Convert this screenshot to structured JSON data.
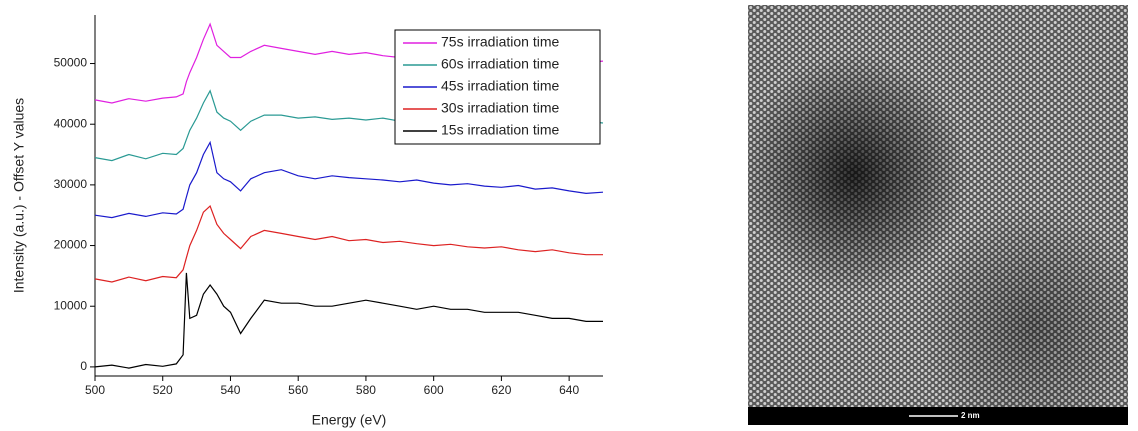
{
  "chart_data": {
    "type": "line",
    "x_label": "Energy (eV)",
    "y_label": "Intensity (a.u.) - Offset Y values",
    "xlim": [
      500,
      650
    ],
    "ylim": [
      -1500,
      58000
    ],
    "xticks": [
      500,
      520,
      540,
      560,
      580,
      600,
      620,
      640
    ],
    "yticks": [
      0,
      10000,
      20000,
      30000,
      40000,
      50000
    ],
    "legend": "upper right",
    "x": [
      500,
      505,
      510,
      515,
      520,
      524,
      526,
      527,
      528,
      530,
      532,
      534,
      536,
      538,
      540,
      543,
      546,
      550,
      555,
      560,
      565,
      570,
      575,
      580,
      585,
      590,
      595,
      600,
      605,
      610,
      615,
      620,
      625,
      630,
      635,
      640,
      645,
      650
    ],
    "series": [
      {
        "name": "75s irradiation time",
        "color": "#e020e0",
        "values": [
          44000,
          43500,
          44200,
          43800,
          44300,
          44500,
          45000,
          47000,
          48500,
          51000,
          54000,
          56500,
          53000,
          52000,
          51000,
          51000,
          52000,
          53000,
          52500,
          52000,
          51500,
          52000,
          51500,
          51800,
          51300,
          51000,
          51200,
          51000,
          50800,
          51000,
          50700,
          50500,
          50800,
          50500,
          50300,
          50500,
          50200,
          50400
        ]
      },
      {
        "name": "60s irradiation time",
        "color": "#2a9a94",
        "values": [
          34500,
          34000,
          35000,
          34300,
          35200,
          35000,
          36000,
          37500,
          39000,
          41000,
          43500,
          45500,
          42000,
          41000,
          40500,
          39000,
          40500,
          41500,
          41500,
          41000,
          41200,
          40800,
          41000,
          40700,
          41000,
          40500,
          40800,
          40500,
          40600,
          40300,
          40500,
          40200,
          40400,
          40000,
          40300,
          40100,
          40500,
          40200
        ]
      },
      {
        "name": "45s irradiation time",
        "color": "#1a1acc",
        "values": [
          25000,
          24600,
          25300,
          24800,
          25400,
          25200,
          26000,
          28000,
          30000,
          32000,
          35000,
          37000,
          32000,
          31000,
          30500,
          29000,
          31000,
          32000,
          32500,
          31500,
          31000,
          31500,
          31200,
          31000,
          30800,
          30500,
          30800,
          30300,
          30000,
          30200,
          29800,
          29600,
          29900,
          29300,
          29500,
          29000,
          28600,
          28800
        ]
      },
      {
        "name": "30s irradiation time",
        "color": "#dd2222",
        "values": [
          14500,
          14000,
          14800,
          14200,
          14900,
          14700,
          16000,
          18000,
          20000,
          22500,
          25500,
          26500,
          23500,
          22000,
          21000,
          19500,
          21500,
          22500,
          22000,
          21500,
          21000,
          21500,
          20800,
          21000,
          20500,
          20700,
          20300,
          20000,
          20200,
          19800,
          19600,
          19800,
          19300,
          19000,
          19300,
          18800,
          18500,
          18500
        ]
      },
      {
        "name": "15s irradiation time",
        "color": "#000000",
        "values": [
          0,
          300,
          -200,
          400,
          100,
          500,
          2000,
          15500,
          8000,
          8500,
          12000,
          13500,
          12000,
          10000,
          9000,
          5500,
          8000,
          11000,
          10500,
          10500,
          10000,
          10000,
          10500,
          11000,
          10500,
          10000,
          9500,
          10000,
          9500,
          9500,
          9000,
          9000,
          9000,
          8500,
          8000,
          8000,
          7500,
          7500
        ]
      }
    ]
  },
  "image": {
    "scale_bar": "2 nm"
  }
}
